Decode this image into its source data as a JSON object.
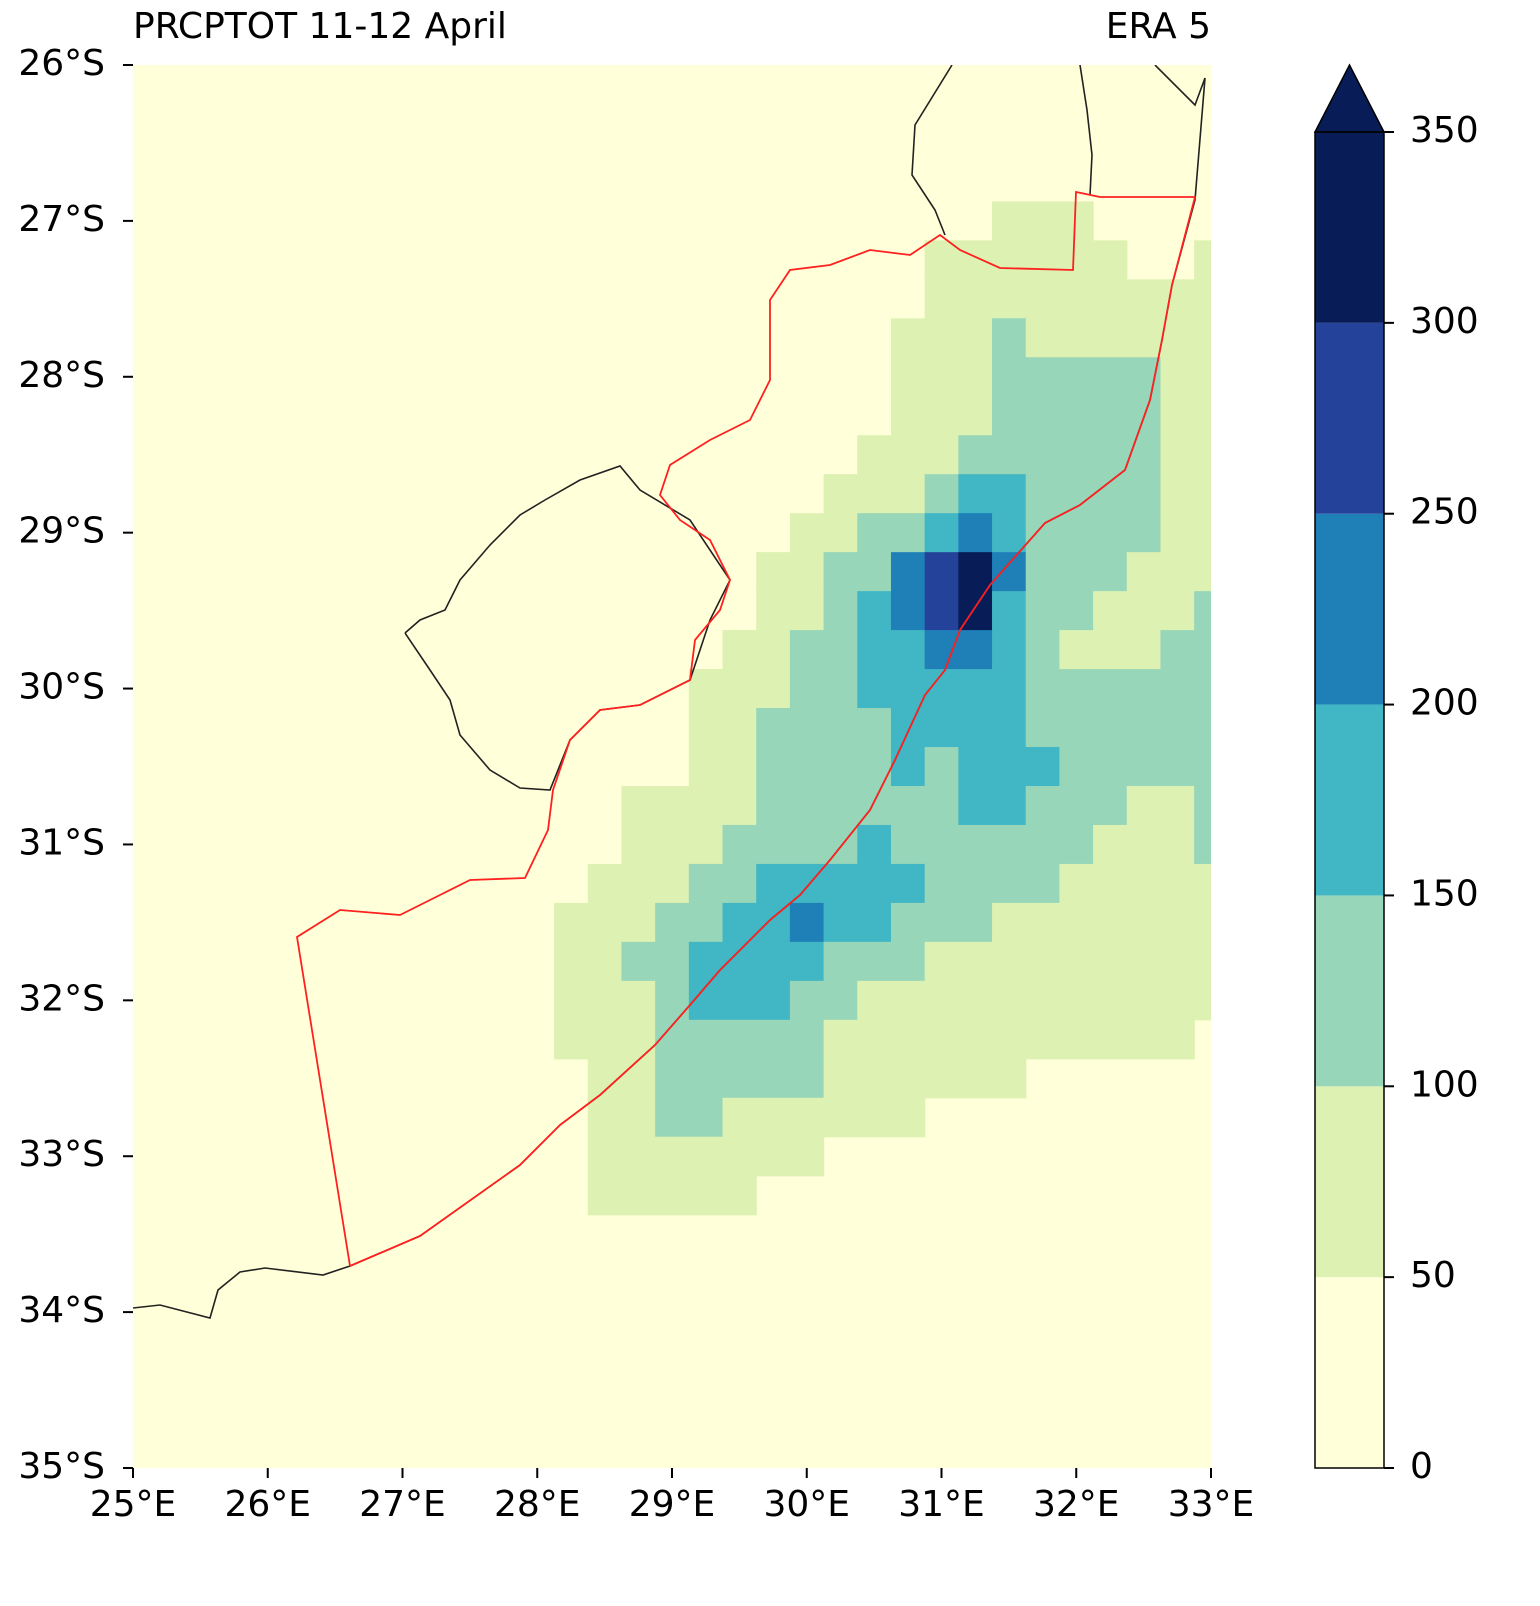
{
  "chart_data": {
    "type": "map",
    "title": "PRCPTOT 11-12 April",
    "title_right": "ERA 5",
    "xlim": [
      25,
      33
    ],
    "ylim": [
      -35,
      -26
    ],
    "xticks": [
      {
        "value": 25,
        "label": "25°E"
      },
      {
        "value": 26,
        "label": "26°E"
      },
      {
        "value": 27,
        "label": "27°E"
      },
      {
        "value": 28,
        "label": "28°E"
      },
      {
        "value": 29,
        "label": "29°E"
      },
      {
        "value": 30,
        "label": "30°E"
      },
      {
        "value": 31,
        "label": "31°E"
      },
      {
        "value": 32,
        "label": "32°E"
      },
      {
        "value": 33,
        "label": "33°E"
      }
    ],
    "yticks": [
      {
        "value": -26,
        "label": "26°S"
      },
      {
        "value": -27,
        "label": "27°S"
      },
      {
        "value": -28,
        "label": "28°S"
      },
      {
        "value": -29,
        "label": "29°S"
      },
      {
        "value": -30,
        "label": "30°S"
      },
      {
        "value": -31,
        "label": "31°S"
      },
      {
        "value": -32,
        "label": "32°S"
      },
      {
        "value": -33,
        "label": "33°S"
      },
      {
        "value": -34,
        "label": "34°S"
      },
      {
        "value": -35,
        "label": "35°S"
      }
    ],
    "resolution": 0.25,
    "colorbar": {
      "levels": [
        0,
        50,
        100,
        150,
        200,
        250,
        300,
        350
      ],
      "colors": [
        "#ffffd9",
        "#dcf1b2",
        "#97d6b9",
        "#41b6c4",
        "#1f80b8",
        "#24429a",
        "#081d58"
      ],
      "extend": "max",
      "ticks": [
        0,
        50,
        100,
        150,
        200,
        250,
        300,
        350
      ]
    },
    "cells": [
      [
        -27.0,
        31.5,
        32.0,
        75
      ],
      [
        -27.25,
        31.0,
        32.25,
        75
      ],
      [
        -27.25,
        33.0,
        33.0,
        75
      ],
      [
        -27.5,
        31.0,
        33.0,
        75
      ],
      [
        -27.75,
        30.75,
        31.25,
        75
      ],
      [
        -27.75,
        31.5,
        31.5,
        125
      ],
      [
        -27.75,
        31.75,
        33.0,
        75
      ],
      [
        -28.0,
        30.75,
        31.25,
        75
      ],
      [
        -28.0,
        31.5,
        32.5,
        125
      ],
      [
        -28.0,
        32.75,
        33.0,
        75
      ],
      [
        -28.25,
        30.75,
        31.25,
        75
      ],
      [
        -28.25,
        31.5,
        32.5,
        125
      ],
      [
        -28.25,
        32.75,
        33.0,
        75
      ],
      [
        -28.5,
        30.5,
        31.0,
        75
      ],
      [
        -28.5,
        31.25,
        32.5,
        125
      ],
      [
        -28.5,
        32.75,
        33.0,
        75
      ],
      [
        -28.75,
        30.25,
        30.75,
        75
      ],
      [
        -28.75,
        31.0,
        31.0,
        125
      ],
      [
        -28.75,
        31.25,
        31.5,
        175
      ],
      [
        -28.75,
        31.75,
        32.5,
        125
      ],
      [
        -28.75,
        32.75,
        33.0,
        75
      ],
      [
        -29.0,
        30.0,
        30.25,
        75
      ],
      [
        -29.0,
        30.5,
        30.75,
        125
      ],
      [
        -29.0,
        31.0,
        31.0,
        175
      ],
      [
        -29.0,
        31.25,
        31.25,
        225
      ],
      [
        -29.0,
        31.5,
        31.5,
        175
      ],
      [
        -29.0,
        31.75,
        32.5,
        125
      ],
      [
        -29.0,
        32.75,
        33.0,
        75
      ],
      [
        -29.25,
        29.75,
        30.0,
        75
      ],
      [
        -29.25,
        30.25,
        30.5,
        125
      ],
      [
        -29.25,
        30.75,
        30.75,
        225
      ],
      [
        -29.25,
        31.0,
        31.0,
        275
      ],
      [
        -29.25,
        31.25,
        31.25,
        325
      ],
      [
        -29.25,
        31.5,
        31.5,
        225
      ],
      [
        -29.25,
        31.75,
        32.25,
        125
      ],
      [
        -29.25,
        32.5,
        33.0,
        75
      ],
      [
        -29.5,
        29.75,
        30.0,
        75
      ],
      [
        -29.5,
        30.25,
        30.25,
        125
      ],
      [
        -29.5,
        30.5,
        30.5,
        175
      ],
      [
        -29.5,
        30.75,
        30.75,
        225
      ],
      [
        -29.5,
        31.0,
        31.0,
        275
      ],
      [
        -29.5,
        31.25,
        31.25,
        325
      ],
      [
        -29.5,
        31.5,
        31.5,
        175
      ],
      [
        -29.5,
        31.75,
        32.0,
        125
      ],
      [
        -29.5,
        32.25,
        32.75,
        75
      ],
      [
        -29.5,
        33.0,
        33.0,
        125
      ],
      [
        -29.75,
        29.5,
        29.75,
        75
      ],
      [
        -29.75,
        30.0,
        30.25,
        125
      ],
      [
        -29.75,
        30.5,
        30.75,
        175
      ],
      [
        -29.75,
        31.0,
        31.25,
        225
      ],
      [
        -29.75,
        31.5,
        31.5,
        175
      ],
      [
        -29.75,
        31.75,
        31.75,
        125
      ],
      [
        -29.75,
        32.0,
        32.5,
        75
      ],
      [
        -29.75,
        32.75,
        33.0,
        125
      ],
      [
        -30.0,
        29.25,
        29.75,
        75
      ],
      [
        -30.0,
        30.0,
        30.25,
        125
      ],
      [
        -30.0,
        30.5,
        31.5,
        175
      ],
      [
        -30.0,
        31.75,
        33.0,
        125
      ],
      [
        -30.25,
        29.25,
        29.5,
        75
      ],
      [
        -30.25,
        29.75,
        30.5,
        125
      ],
      [
        -30.25,
        30.75,
        31.5,
        175
      ],
      [
        -30.25,
        31.75,
        33.0,
        125
      ],
      [
        -30.5,
        29.25,
        29.5,
        75
      ],
      [
        -30.5,
        29.75,
        30.5,
        125
      ],
      [
        -30.5,
        30.75,
        30.75,
        175
      ],
      [
        -30.5,
        31.0,
        31.0,
        125
      ],
      [
        -30.5,
        31.25,
        31.75,
        175
      ],
      [
        -30.5,
        32.0,
        33.0,
        125
      ],
      [
        -30.75,
        28.75,
        29.5,
        75
      ],
      [
        -30.75,
        29.75,
        31.0,
        125
      ],
      [
        -30.75,
        31.25,
        31.5,
        175
      ],
      [
        -30.75,
        31.75,
        32.25,
        125
      ],
      [
        -30.75,
        32.5,
        32.75,
        75
      ],
      [
        -30.75,
        33.0,
        33.0,
        125
      ],
      [
        -31.0,
        28.75,
        29.25,
        75
      ],
      [
        -31.0,
        29.5,
        30.25,
        125
      ],
      [
        -31.0,
        30.5,
        30.5,
        175
      ],
      [
        -31.0,
        30.75,
        32.0,
        125
      ],
      [
        -31.0,
        32.25,
        32.75,
        75
      ],
      [
        -31.0,
        33.0,
        33.0,
        125
      ],
      [
        -31.25,
        28.5,
        29.0,
        75
      ],
      [
        -31.25,
        29.25,
        29.5,
        125
      ],
      [
        -31.25,
        29.75,
        30.75,
        175
      ],
      [
        -31.25,
        31.0,
        31.75,
        125
      ],
      [
        -31.25,
        32.0,
        33.0,
        75
      ],
      [
        -31.5,
        28.25,
        28.75,
        75
      ],
      [
        -31.5,
        29.0,
        29.25,
        125
      ],
      [
        -31.5,
        29.5,
        29.75,
        175
      ],
      [
        -31.5,
        30.0,
        30.0,
        225
      ],
      [
        -31.5,
        30.25,
        30.5,
        175
      ],
      [
        -31.5,
        30.75,
        31.25,
        125
      ],
      [
        -31.5,
        31.5,
        33.0,
        75
      ],
      [
        -31.75,
        28.25,
        28.5,
        75
      ],
      [
        -31.75,
        28.75,
        29.0,
        125
      ],
      [
        -31.75,
        29.25,
        30.0,
        175
      ],
      [
        -31.75,
        30.25,
        30.75,
        125
      ],
      [
        -31.75,
        31.0,
        33.0,
        75
      ],
      [
        -32.0,
        28.25,
        28.75,
        75
      ],
      [
        -32.0,
        29.0,
        29.0,
        125
      ],
      [
        -32.0,
        29.25,
        29.75,
        175
      ],
      [
        -32.0,
        30.0,
        30.25,
        125
      ],
      [
        -32.0,
        30.5,
        33.0,
        75
      ],
      [
        -32.25,
        28.25,
        28.75,
        75
      ],
      [
        -32.25,
        29.0,
        30.0,
        125
      ],
      [
        -32.25,
        30.25,
        32.75,
        75
      ],
      [
        -32.5,
        28.5,
        28.75,
        75
      ],
      [
        -32.5,
        29.0,
        30.0,
        125
      ],
      [
        -32.5,
        30.25,
        31.5,
        75
      ],
      [
        -32.75,
        28.5,
        28.75,
        75
      ],
      [
        -32.75,
        29.0,
        29.25,
        125
      ],
      [
        -32.75,
        29.5,
        30.75,
        75
      ],
      [
        -33.0,
        28.5,
        30.0,
        75
      ],
      [
        -33.25,
        28.5,
        29.5,
        75
      ]
    ]
  }
}
